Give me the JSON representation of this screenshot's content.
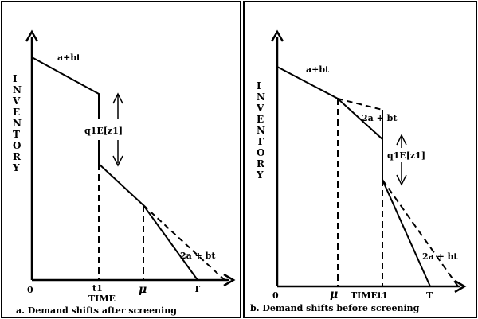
{
  "figure": {
    "left": {
      "y_axis_label": "INVENTORY",
      "x_axis_label": "TIME",
      "ticks": {
        "origin": "0",
        "t1": "t1",
        "mu": "μ",
        "T": "T"
      },
      "annotations": {
        "segment1": "a+bt",
        "jump": "q1E[z1]",
        "segment3": "2a + bt"
      },
      "caption": "a. Demand shifts after screening"
    },
    "right": {
      "y_axis_label": "INVENTORY",
      "x_axis_label": "TIME",
      "ticks": {
        "origin": "0",
        "mu": "μ",
        "t1": "t1",
        "T": "T"
      },
      "annotations": {
        "segment1": "a+bt",
        "segment2": "2a + bt",
        "jump": "q1E[z1]",
        "segment3": "2a + bt"
      },
      "caption": "b. Demand shifts before screening"
    }
  }
}
